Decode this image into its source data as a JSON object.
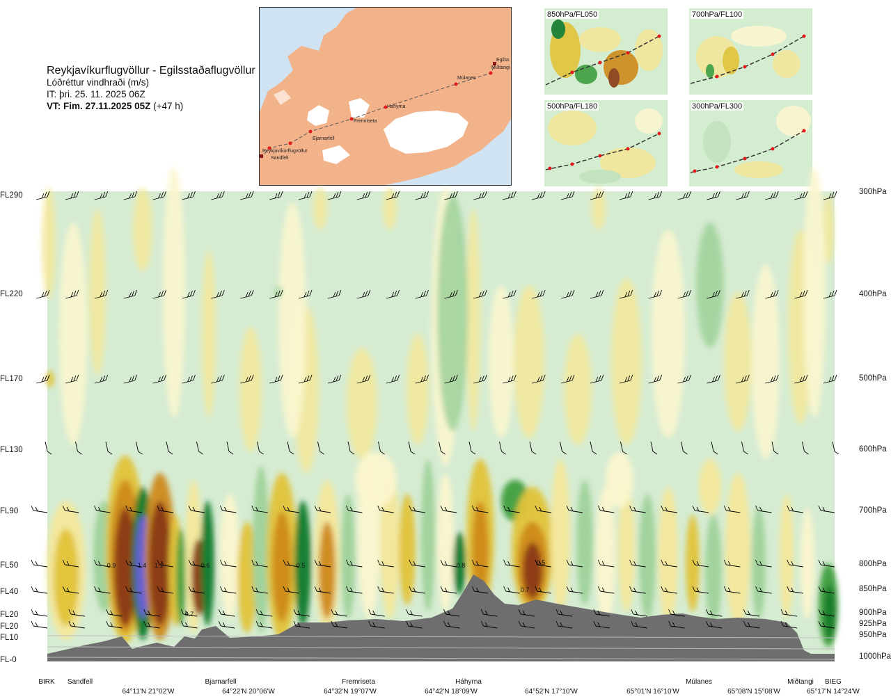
{
  "header": {
    "route": "Reykjavíkurflugvöllur - Egilsstaðaflugvöllur",
    "parameter": "Lóðréttur vindhraði (m/s)",
    "issue": "IT: þri. 25. 11. 2025 06Z",
    "valid_bold": "VT: Fim. 27.11.2025 05Z",
    "valid_offset": "(+47 h)"
  },
  "map": {
    "places": [
      "Reykjavíkurflugvöllur",
      "Sandfell",
      "Bjarnarfell",
      "Fremriseta",
      "Háhyrna",
      "Múlanes",
      "Miðtangi",
      "Egilss"
    ],
    "route_line_color": "#555555",
    "point_color": "#e31a1c",
    "land_color": "#f2b38a",
    "ice_color": "#ffffff",
    "sea_color": "#cfe3f2"
  },
  "insets": [
    {
      "label": "850hPa/FL050"
    },
    {
      "label": "700hPa/FL100"
    },
    {
      "label": "500hPa/FL180"
    },
    {
      "label": "300hPa/FL300"
    }
  ],
  "chart_data": {
    "type": "heatmap",
    "title": "Lóðréttur vindhraði (m/s)",
    "y_left_labels": [
      "FL290",
      "FL220",
      "FL170",
      "FL130",
      "FL90",
      "FL50",
      "FL40",
      "FL20",
      "FL20",
      "FL10",
      "FL-0"
    ],
    "y_right_labels": [
      "300hPa",
      "400hPa",
      "500hPa",
      "600hPa",
      "700hPa",
      "800hPa",
      "850hPa",
      "900hPa",
      "925hPa",
      "950hPa",
      "1000hPa"
    ],
    "pressure_levels_hPa": [
      300,
      400,
      500,
      600,
      700,
      800,
      850,
      900,
      925,
      950,
      1000
    ],
    "x_waypoints": [
      "BIRK",
      "Sandfell",
      "Bjarnarfell",
      "Fremriseta",
      "Háhyrna",
      "Múlanes",
      "Miðtangi",
      "BIEG"
    ],
    "x_coordinates": [
      "64°11'N 21°02'W",
      "64°22'N 20°06'W",
      "64°32'N 19°07'W",
      "64°42'N 18°09'W",
      "64°52'N 17°10'W",
      "65°01'N 16°10'W",
      "65°08'N 15°08'W",
      "65°17'N 14°24'W"
    ],
    "data_labels": [
      "0.9",
      "1.4",
      "1.1",
      "0.7",
      "0.6",
      "0.5",
      "0.8",
      "0.5",
      "0.7"
    ],
    "colors": {
      "background": "#d6ecd2",
      "light_green": "#c2e2bd",
      "mid_green": "#9fd19a",
      "green": "#3f9e3f",
      "dark_green": "#127a2a",
      "blue_purple": "#6a5fd8",
      "cream": "#fbf6cf",
      "yellow": "#f3e79a",
      "gold": "#e2c33a",
      "orange": "#cf8a1c",
      "brown": "#8a3a12",
      "terrain": "#6e6e6e"
    }
  }
}
